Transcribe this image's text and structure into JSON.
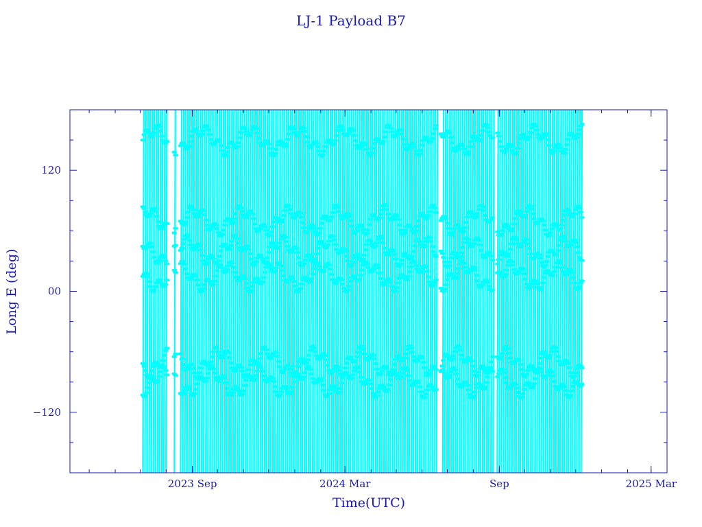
{
  "chart_data": {
    "type": "line",
    "title": "LJ-1 Payload B7",
    "xlabel": "Time(UTC)",
    "ylabel": "Long E (deg)",
    "xlim": [
      "2023-04-08",
      "2025-03-20"
    ],
    "ylim": [
      -180,
      180
    ],
    "x_ticks": [
      {
        "date": "2023-09-01",
        "label": "2023 Sep"
      },
      {
        "date": "2024-03-01",
        "label": "2024 Mar"
      },
      {
        "date": "2024-09-01",
        "label": "Sep"
      },
      {
        "date": "2025-03-01",
        "label": "2025 Mar"
      }
    ],
    "y_ticks": [
      {
        "value": 120,
        "label": "120"
      },
      {
        "value": 0,
        "label": "00"
      },
      {
        "value": -120,
        "label": "−120"
      }
    ],
    "series": [
      {
        "color": "#00ffff",
        "data_start": "2023-07-04",
        "data_end": "2024-12-09",
        "data_gaps": [
          [
            "2023-08-03",
            "2023-08-10"
          ],
          [
            "2023-08-13",
            "2023-08-17"
          ],
          [
            "2024-06-19",
            "2024-06-23"
          ],
          [
            "2024-08-25",
            "2024-08-29"
          ]
        ],
        "band_levels": [
          150,
          70,
          40,
          15,
          -70,
          -90
        ]
      }
    ],
    "grid": false,
    "legend": "none"
  }
}
